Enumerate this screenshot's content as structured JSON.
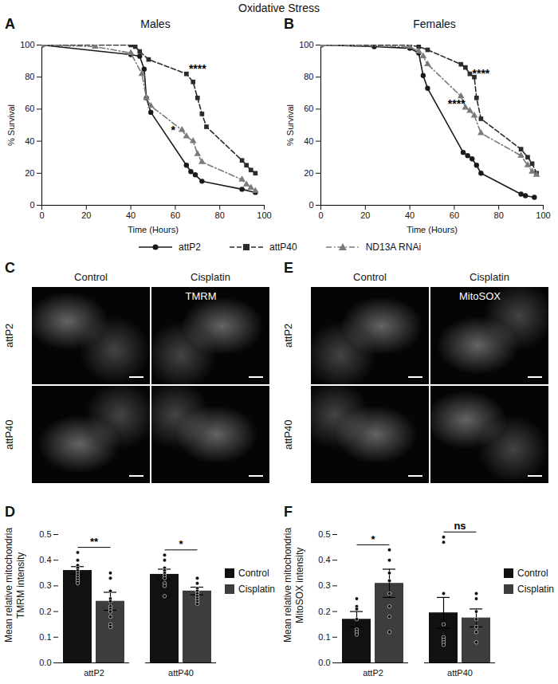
{
  "title": "Oxidative Stress",
  "chart_data": [
    {
      "panel": "A",
      "type": "line",
      "title": "Males",
      "x_label": "Time (Hours)",
      "y_label": "% Survival",
      "xlim": [
        0,
        100
      ],
      "xticks": [
        0,
        20,
        40,
        60,
        80,
        100
      ],
      "ylim": [
        0,
        100
      ],
      "yticks": [
        0,
        20,
        40,
        60,
        80,
        100
      ],
      "legend": "bottom",
      "series": [
        {
          "name": "attP2",
          "color": "#1a1a1a",
          "marker": "circle",
          "line_style": "solid",
          "x": [
            0,
            40,
            44,
            46,
            47,
            49,
            65,
            67,
            69,
            72,
            90,
            96
          ],
          "values": [
            100,
            94,
            93,
            85,
            67,
            58,
            25,
            21,
            19,
            15,
            10,
            8
          ]
        },
        {
          "name": "attP40",
          "color": "#2b2b2b",
          "marker": "square",
          "line_style": "dashed",
          "x": [
            0,
            40,
            42,
            44,
            48,
            65,
            68,
            70,
            72,
            74,
            90,
            92,
            94,
            96
          ],
          "values": [
            100,
            100,
            99,
            96,
            91,
            82,
            77,
            67,
            57,
            49,
            28,
            25,
            22,
            20
          ]
        },
        {
          "name": "ND13A RNAi",
          "color": "#7a7a7a",
          "marker": "triangle",
          "line_style": "dashdot",
          "x": [
            0,
            24,
            40,
            45,
            47,
            49,
            63,
            65,
            68,
            70,
            72,
            90,
            92,
            94,
            96
          ],
          "values": [
            100,
            99,
            95,
            82,
            67,
            62,
            47,
            43,
            40,
            32,
            27,
            16,
            13,
            11,
            9
          ]
        }
      ],
      "annotations": [
        {
          "text": "****",
          "x": 70,
          "y": 85
        },
        {
          "text": "*",
          "x": 59,
          "y": 47
        }
      ]
    },
    {
      "panel": "B",
      "type": "line",
      "title": "Females",
      "x_label": "Time (Hours)",
      "y_label": "% Survival",
      "xlim": [
        0,
        100
      ],
      "xticks": [
        0,
        20,
        40,
        60,
        80,
        100
      ],
      "ylim": [
        0,
        100
      ],
      "yticks": [
        0,
        20,
        40,
        60,
        80,
        100
      ],
      "series": [
        {
          "name": "attP2",
          "color": "#1a1a1a",
          "marker": "circle",
          "line_style": "solid",
          "x": [
            0,
            24,
            40,
            44,
            46,
            48,
            64,
            66,
            68,
            70,
            72,
            90,
            92,
            96
          ],
          "values": [
            100,
            99,
            98,
            95,
            81,
            73,
            33,
            31,
            29,
            25,
            20,
            7,
            6,
            5
          ]
        },
        {
          "name": "attP40",
          "color": "#2b2b2b",
          "marker": "square",
          "line_style": "dashed",
          "x": [
            0,
            40,
            44,
            48,
            63,
            65,
            67,
            69,
            70,
            72,
            90,
            93,
            95,
            97
          ],
          "values": [
            100,
            100,
            99,
            97,
            88,
            86,
            82,
            80,
            67,
            54,
            35,
            30,
            26,
            20
          ]
        },
        {
          "name": "ND13A RNAi",
          "color": "#7a7a7a",
          "marker": "triangle",
          "line_style": "dashdot",
          "x": [
            0,
            40,
            44,
            46,
            48,
            63,
            65,
            67,
            69,
            72,
            90,
            93,
            95,
            97
          ],
          "values": [
            100,
            99,
            96,
            93,
            88,
            68,
            61,
            59,
            56,
            45,
            31,
            25,
            21,
            19
          ]
        }
      ],
      "annotations": [
        {
          "text": "****",
          "x": 61,
          "y": 63
        },
        {
          "text": "****",
          "x": 72,
          "y": 82
        }
      ]
    },
    {
      "panel": "D",
      "type": "bar",
      "y_label": "Mean relative mitochondria TMRM intensity",
      "categories": [
        "attP2",
        "attP40"
      ],
      "legend": "right",
      "ylim": [
        0,
        0.5
      ],
      "yticks": [
        {
          "value": 0,
          "label": "0.0"
        },
        0.1,
        0.2,
        0.3,
        0.4,
        0.5
      ],
      "series": [
        {
          "name": "Control",
          "color": "#111111",
          "values": [
            0.36,
            0.345
          ],
          "errors": [
            0.015,
            0.02
          ],
          "points": [
            [
              0.43,
              0.4,
              0.38,
              0.37,
              0.36,
              0.35,
              0.34,
              0.33,
              0.32,
              0.31
            ],
            [
              0.42,
              0.4,
              0.37,
              0.36,
              0.35,
              0.34,
              0.33,
              0.31,
              0.3,
              0.26
            ]
          ]
        },
        {
          "name": "Cisplatin",
          "color": "#3d3d3d",
          "values": [
            0.24,
            0.28
          ],
          "errors": [
            0.035,
            0.015
          ],
          "points": [
            [
              0.35,
              0.33,
              0.28,
              0.25,
              0.24,
              0.22,
              0.21,
              0.2,
              0.18,
              0.15,
              0.14
            ],
            [
              0.33,
              0.31,
              0.29,
              0.28,
              0.28,
              0.27,
              0.26,
              0.25,
              0.24,
              0.23
            ]
          ]
        }
      ],
      "significance": [
        {
          "category": "attP2",
          "label": "**"
        },
        {
          "category": "attP40",
          "label": "*"
        }
      ]
    },
    {
      "panel": "F",
      "type": "bar",
      "y_label": "Mean relative mitochondria MitoSOX intensity",
      "categories": [
        "attP2",
        "attP40"
      ],
      "legend": "right",
      "ylim": [
        0,
        0.5
      ],
      "yticks": [
        {
          "value": 0,
          "label": "0.0"
        },
        0.1,
        0.2,
        0.3,
        0.4,
        0.5
      ],
      "series": [
        {
          "name": "Control",
          "color": "#111111",
          "values": [
            0.17,
            0.195
          ],
          "errors": [
            0.03,
            0.06
          ],
          "points": [
            [
              0.25,
              0.22,
              0.21,
              0.17,
              0.13,
              0.12,
              0.11
            ],
            [
              0.49,
              0.47,
              0.27,
              0.15,
              0.1,
              0.09,
              0.08,
              0.07
            ]
          ]
        },
        {
          "name": "Cisplatin",
          "color": "#3d3d3d",
          "values": [
            0.31,
            0.175
          ],
          "errors": [
            0.055,
            0.035
          ],
          "points": [
            [
              0.44,
              0.4,
              0.35,
              0.32,
              0.27,
              0.22,
              0.18,
              0.12
            ],
            [
              0.27,
              0.25,
              0.2,
              0.17,
              0.14,
              0.12,
              0.08
            ]
          ]
        }
      ],
      "significance": [
        {
          "category": "attP2",
          "label": "*"
        },
        {
          "category": "attP40",
          "label": "ns"
        }
      ]
    }
  ],
  "image_panels": [
    {
      "panel": "C",
      "stain": "TMRM",
      "columns": [
        "Control",
        "Cisplatin"
      ],
      "rows": [
        "attP2",
        "attP40"
      ]
    },
    {
      "panel": "E",
      "stain": "MitoSOX",
      "columns": [
        "Control",
        "Cisplatin"
      ],
      "rows": [
        "attP2",
        "attP40"
      ]
    }
  ]
}
